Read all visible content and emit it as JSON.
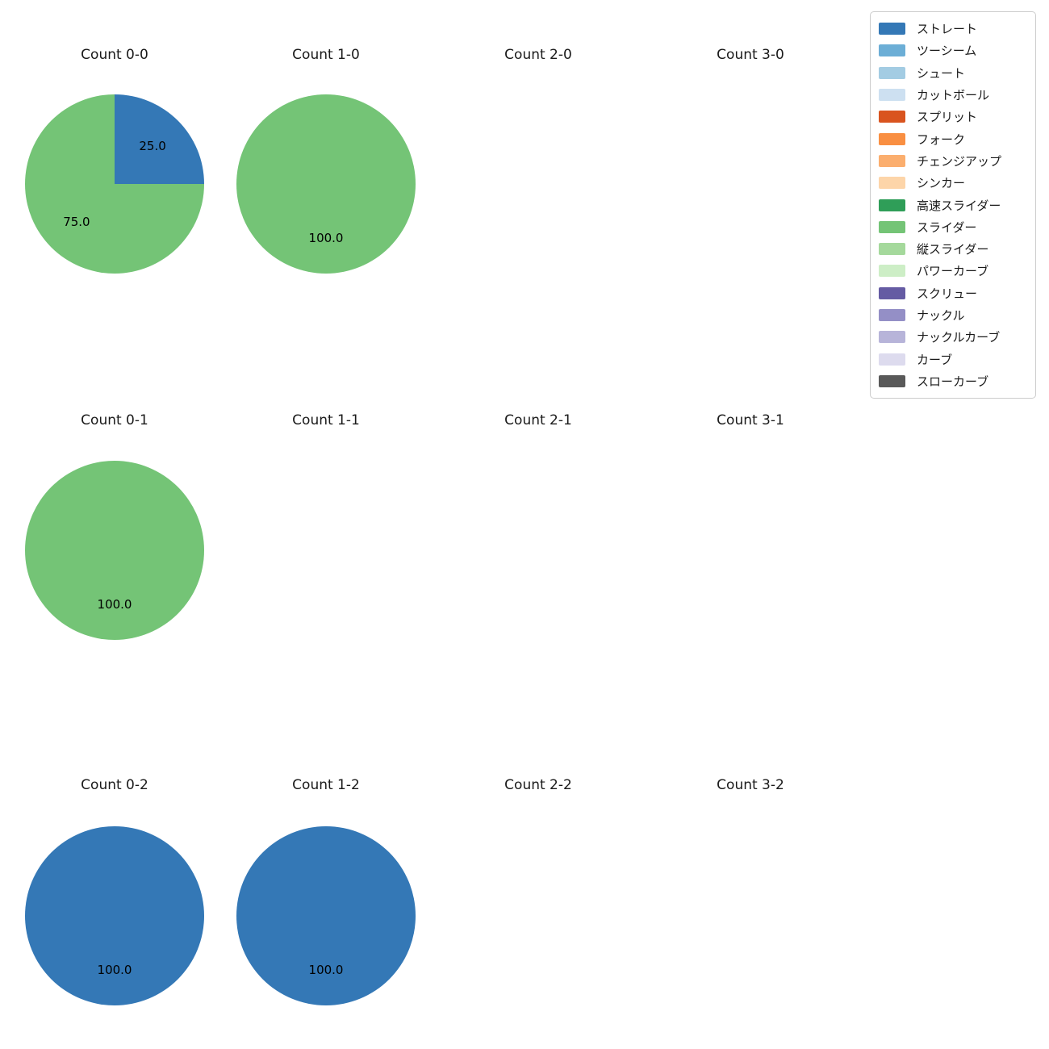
{
  "figure": {
    "background": "#ffffff"
  },
  "chart_data": [
    {
      "type": "pie",
      "title": "Count 0-0",
      "labels": [
        "ストレート",
        "スライダー"
      ],
      "values": [
        25.0,
        75.0
      ],
      "colors": [
        "#3478b6",
        "#74c476"
      ],
      "value_labels": [
        "25.0",
        "75.0"
      ]
    },
    {
      "type": "pie",
      "title": "Count 1-0",
      "labels": [
        "スライダー"
      ],
      "values": [
        100.0
      ],
      "colors": [
        "#74c476"
      ],
      "value_labels": [
        "100.0"
      ]
    },
    {
      "type": "pie",
      "title": "Count 2-0",
      "labels": [],
      "values": [],
      "colors": [],
      "value_labels": []
    },
    {
      "type": "pie",
      "title": "Count 3-0",
      "labels": [],
      "values": [],
      "colors": [],
      "value_labels": []
    },
    {
      "type": "pie",
      "title": "Count 0-1",
      "labels": [
        "スライダー"
      ],
      "values": [
        100.0
      ],
      "colors": [
        "#74c476"
      ],
      "value_labels": [
        "100.0"
      ]
    },
    {
      "type": "pie",
      "title": "Count 1-1",
      "labels": [],
      "values": [],
      "colors": [],
      "value_labels": []
    },
    {
      "type": "pie",
      "title": "Count 2-1",
      "labels": [],
      "values": [],
      "colors": [],
      "value_labels": []
    },
    {
      "type": "pie",
      "title": "Count 3-1",
      "labels": [],
      "values": [],
      "colors": [],
      "value_labels": []
    },
    {
      "type": "pie",
      "title": "Count 0-2",
      "labels": [
        "ストレート"
      ],
      "values": [
        100.0
      ],
      "colors": [
        "#3478b6"
      ],
      "value_labels": [
        "100.0"
      ]
    },
    {
      "type": "pie",
      "title": "Count 1-2",
      "labels": [
        "ストレート"
      ],
      "values": [
        100.0
      ],
      "colors": [
        "#3478b6"
      ],
      "value_labels": [
        "100.0"
      ]
    },
    {
      "type": "pie",
      "title": "Count 2-2",
      "labels": [],
      "values": [],
      "colors": [],
      "value_labels": []
    },
    {
      "type": "pie",
      "title": "Count 3-2",
      "labels": [],
      "values": [],
      "colors": [],
      "value_labels": []
    }
  ],
  "legend": {
    "items": [
      {
        "label": "ストレート",
        "color": "#3478b6"
      },
      {
        "label": "ツーシーム",
        "color": "#6caed6"
      },
      {
        "label": "シュート",
        "color": "#a3cce3"
      },
      {
        "label": "カットボール",
        "color": "#cde0f1"
      },
      {
        "label": "スプリット",
        "color": "#d9541f"
      },
      {
        "label": "フォーク",
        "color": "#f98f42"
      },
      {
        "label": "チェンジアップ",
        "color": "#fbae6e"
      },
      {
        "label": "シンカー",
        "color": "#fdd5a9"
      },
      {
        "label": "高速スライダー",
        "color": "#2f9e58"
      },
      {
        "label": "スライダー",
        "color": "#74c476"
      },
      {
        "label": "縦スライダー",
        "color": "#a5d99c"
      },
      {
        "label": "パワーカーブ",
        "color": "#cdeec6"
      },
      {
        "label": "スクリュー",
        "color": "#655ba3"
      },
      {
        "label": "ナックル",
        "color": "#948fc6"
      },
      {
        "label": "ナックルカーブ",
        "color": "#b7b4d9"
      },
      {
        "label": "カーブ",
        "color": "#dddbee"
      },
      {
        "label": "スローカーブ",
        "color": "#595959"
      }
    ]
  }
}
